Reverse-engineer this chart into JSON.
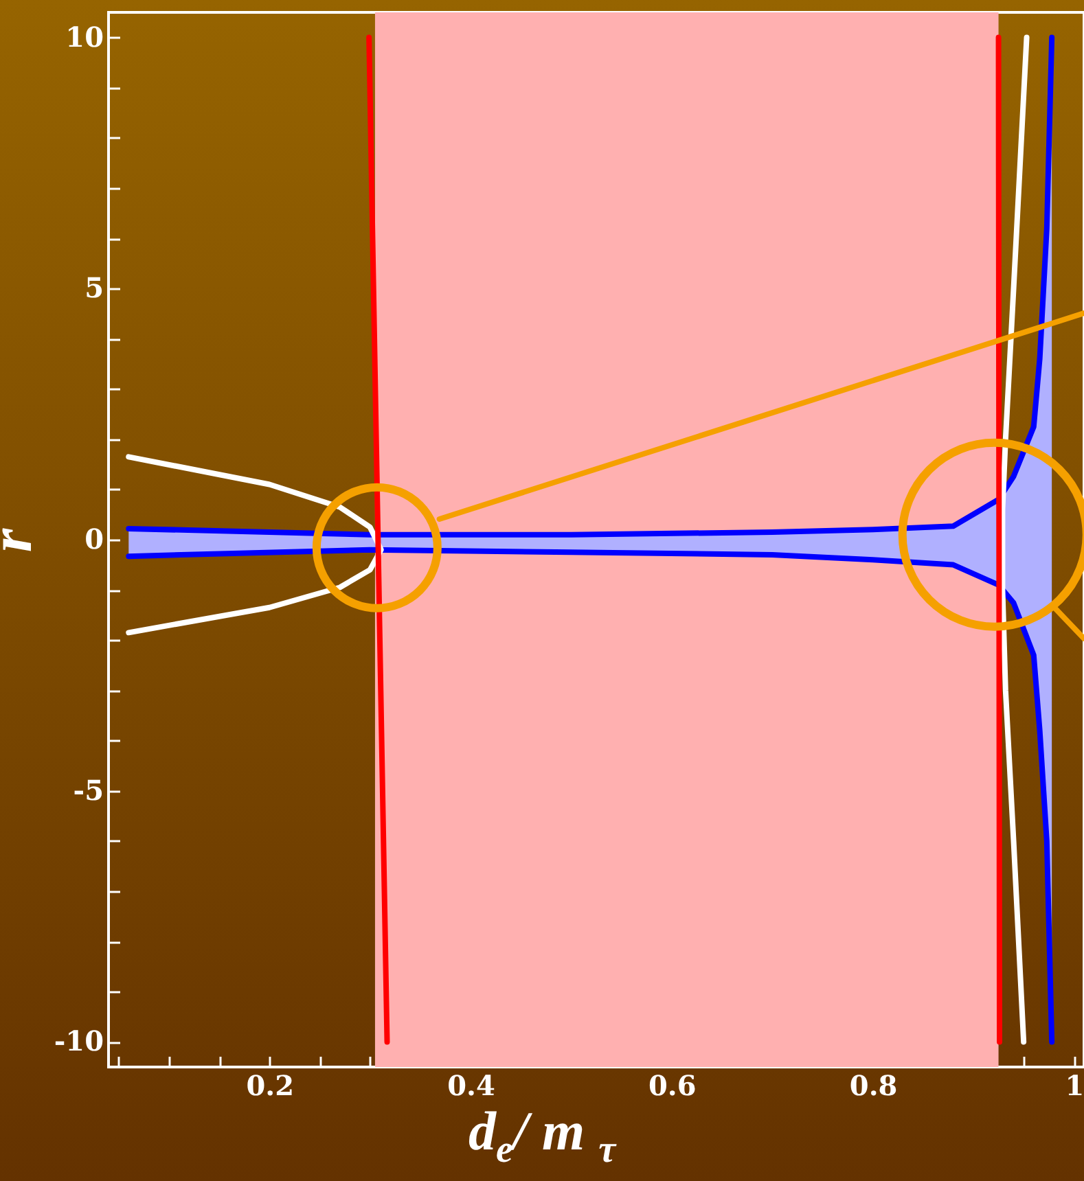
{
  "chart_data": {
    "type": "line",
    "xlabel": "d$_{e}$/ m $_{τ}$",
    "ylabel": "r",
    "xlim": [
      0.04,
      1.01
    ],
    "ylim": [
      -10.5,
      10.5
    ],
    "xticks": [
      {
        "value": 0.05,
        "label": null
      },
      {
        "value": 0.1,
        "label": null
      },
      {
        "value": 0.15,
        "label": null
      },
      0.2,
      {
        "value": 0.25,
        "label": null
      },
      {
        "value": 0.3,
        "label": null
      },
      {
        "value": 0.35,
        "label": null
      },
      0.4,
      {
        "value": 0.45,
        "label": null
      },
      {
        "value": 0.5,
        "label": null
      },
      {
        "value": 0.55,
        "label": null
      },
      0.6,
      {
        "value": 0.65,
        "label": null
      },
      {
        "value": 0.7,
        "label": null
      },
      {
        "value": 0.75,
        "label": null
      },
      0.8,
      {
        "value": 0.85,
        "label": null
      },
      {
        "value": 0.9,
        "label": null
      },
      {
        "value": 0.95,
        "label": null
      },
      1
    ],
    "yticks": [
      -10,
      {
        "value": -9,
        "label": null
      },
      {
        "value": -8,
        "label": null
      },
      {
        "value": -7,
        "label": null
      },
      {
        "value": -6,
        "label": null
      },
      -5,
      {
        "value": -4,
        "label": null
      },
      {
        "value": -3,
        "label": null
      },
      {
        "value": -2,
        "label": null
      },
      {
        "value": -1,
        "label": null
      },
      0,
      {
        "value": 1,
        "label": null
      },
      {
        "value": 2,
        "label": null
      },
      {
        "value": 3,
        "label": null
      },
      {
        "value": 4,
        "label": null
      },
      5,
      {
        "value": 6,
        "label": null
      },
      {
        "value": 7,
        "label": null
      },
      {
        "value": 8,
        "label": null
      },
      {
        "value": 9,
        "label": null
      },
      10
    ],
    "grid": false,
    "bands": [
      {
        "axis": "x",
        "from": 0.305,
        "to": 0.925,
        "color": "#ffb0b0"
      }
    ],
    "series": [
      {
        "type": "line",
        "color": "#0000ff",
        "x": [
          0.06,
          0.3,
          0.5,
          0.7,
          0.8,
          0.88,
          0.925,
          0.94,
          0.96,
          0.966,
          0.973,
          0.978
        ],
        "values": [
          0.22,
          0.1,
          0.1,
          0.15,
          0.2,
          0.27,
          0.8,
          1.26,
          2.25,
          3.6,
          6.2,
          10
        ],
        "lower": [
          -0.33,
          -0.2,
          -0.25,
          -0.3,
          -0.4,
          -0.5,
          -0.9,
          -1.26,
          -2.3,
          -3.8,
          -6,
          -10
        ],
        "upper": [
          0.22,
          0.1,
          0.1,
          0.15,
          0.2,
          0.27,
          0.8,
          1.26,
          2.25,
          3.6,
          6.2,
          10
        ]
      },
      {
        "type": "line",
        "color": "#0000ff",
        "x": [
          0.06,
          0.3,
          0.5,
          0.7,
          0.8,
          0.88,
          0.925,
          0.94,
          0.96,
          0.966,
          0.973,
          0.978
        ],
        "values": [
          -0.33,
          -0.2,
          -0.25,
          -0.3,
          -0.4,
          -0.5,
          -0.9,
          -1.26,
          -2.3,
          -3.8,
          -6,
          -10
        ]
      },
      {
        "type": "line",
        "color": "#ffffff",
        "x": [
          0.06,
          0.2,
          0.27,
          0.3,
          0.311,
          0.3,
          0.27,
          0.2,
          0.06
        ],
        "values": [
          1.65,
          1.1,
          0.65,
          0.25,
          -0.2,
          -0.6,
          -0.95,
          -1.35,
          -1.85
        ]
      },
      {
        "type": "line",
        "color": "#ffffff",
        "x": [
          0.953,
          0.94,
          0.932,
          0.929,
          0.929,
          0.932,
          0.94,
          0.95
        ],
        "values": [
          10,
          5,
          2,
          0.6,
          -1,
          -3,
          -6,
          -10
        ]
      },
      {
        "type": "line",
        "color": "#ff0000",
        "x": [
          0.299,
          0.317
        ],
        "values": [
          10,
          -10
        ]
      },
      {
        "type": "line",
        "color": "#ff0000",
        "x": [
          0.925,
          0.926
        ],
        "values": [
          10,
          -10
        ]
      },
      {
        "type": "line",
        "color": "#f5a000",
        "x": [
          0.369,
          1.01
        ],
        "values": [
          0.41,
          4.51
        ]
      },
      {
        "type": "line",
        "color": "#f5a000",
        "x": [
          0.98,
          1.01
        ],
        "values": [
          -1.34,
          -1.97
        ]
      }
    ]
  }
}
